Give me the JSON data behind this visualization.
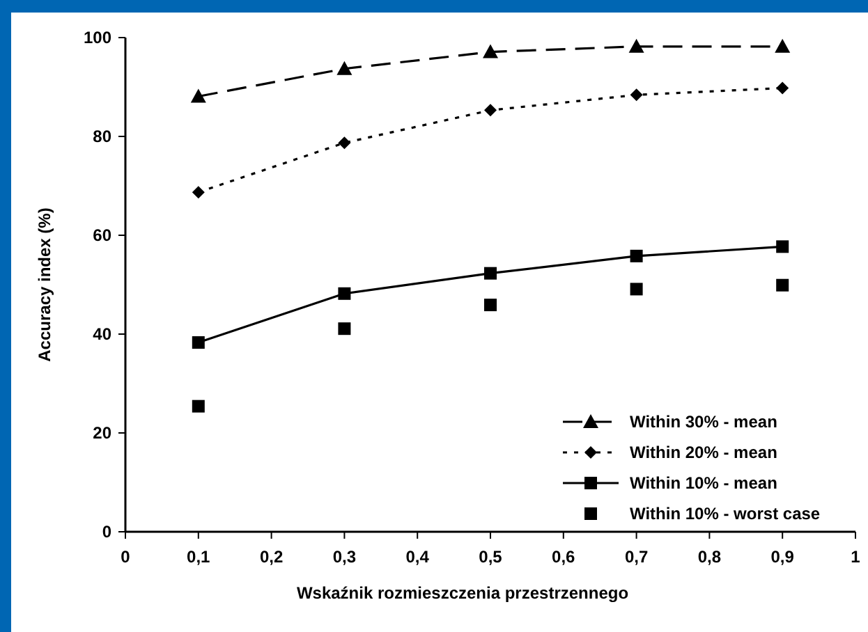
{
  "chart_data": {
    "type": "line",
    "xlabel": "Wskaźnik rozmieszczenia przestrzennego",
    "ylabel": "Accuracy index (%)",
    "x": [
      0.1,
      0.3,
      0.5,
      0.7,
      0.9
    ],
    "xlim": [
      0,
      1
    ],
    "xticks": [
      0,
      {
        "value": 0.1,
        "label": "0,1"
      },
      {
        "value": 0.2,
        "label": "0,2"
      },
      {
        "value": 0.3,
        "label": "0,3"
      },
      {
        "value": 0.4,
        "label": "0,4"
      },
      {
        "value": 0.5,
        "label": "0,5"
      },
      {
        "value": 0.6,
        "label": "0,6"
      },
      {
        "value": 0.7,
        "label": "0,7"
      },
      {
        "value": 0.8,
        "label": "0,8"
      },
      {
        "value": 0.9,
        "label": "0,9"
      },
      1
    ],
    "ylim": [
      0,
      100
    ],
    "yticks": [
      0,
      20,
      40,
      60,
      80,
      100
    ],
    "grid": false,
    "legend": "bottom right",
    "series": [
      {
        "name": "Within 30% - mean",
        "color": "#000000",
        "values": [
          88.1,
          93.7,
          97.1,
          98.2,
          98.2
        ],
        "marker": "triangle",
        "line_style": "dashed"
      },
      {
        "name": "Within 20% - mean",
        "color": "#000000",
        "values": [
          68.7,
          78.7,
          85.3,
          88.4,
          89.8
        ],
        "marker": "diamond",
        "line_style": "dotted"
      },
      {
        "name": "Within 10% - mean",
        "color": "#000000",
        "values": [
          38.3,
          48.2,
          52.3,
          55.8,
          57.7
        ],
        "marker": "square",
        "line_style": "solid"
      },
      {
        "name": "Within 10% - worst case",
        "type": "scatter",
        "color": "#000000",
        "values": [
          25.4,
          41.1,
          45.9,
          49.1,
          49.9
        ],
        "marker": "square"
      }
    ]
  }
}
